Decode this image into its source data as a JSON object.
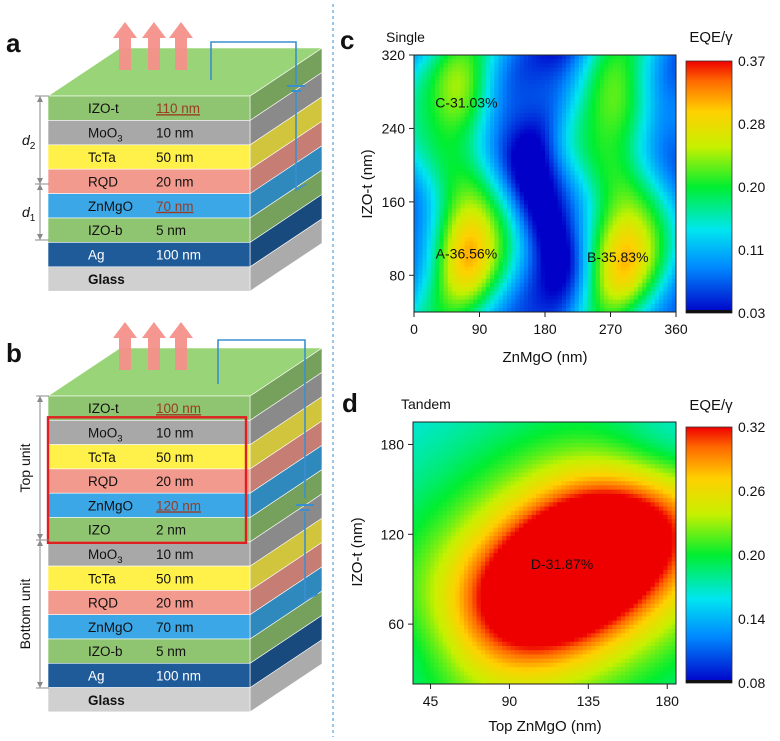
{
  "panel_a": {
    "label": "a",
    "layers": [
      {
        "name": "IZO-t",
        "thickness": "110 nm",
        "highlight": true,
        "color": "#8fc470"
      },
      {
        "name": "MoO",
        "sub": "3",
        "thickness": "10 nm",
        "highlight": false,
        "color": "#a8a8a8"
      },
      {
        "name": "TcTa",
        "thickness": "50 nm",
        "highlight": false,
        "color": "#fff04a"
      },
      {
        "name": "RQD",
        "thickness": "20 nm",
        "highlight": false,
        "color": "#f29a8e"
      },
      {
        "name": "ZnMgO",
        "thickness": "70 nm",
        "highlight": true,
        "color": "#3ba7e6"
      },
      {
        "name": "IZO-b",
        "thickness": "5 nm",
        "highlight": false,
        "color": "#8fc470"
      },
      {
        "name": "Ag",
        "thickness": "100 nm",
        "highlight": false,
        "color": "#1f5a99"
      },
      {
        "name": "Glass",
        "thickness": "",
        "highlight": false,
        "color": "#d0d0d0"
      }
    ],
    "dim_d2": "d",
    "dim_d2_sub": "2",
    "dim_d1": "d",
    "dim_d1_sub": "1"
  },
  "panel_b": {
    "label": "b",
    "layers": [
      {
        "name": "IZO-t",
        "thickness": "100 nm",
        "highlight": true,
        "color": "#8fc470"
      },
      {
        "name": "MoO",
        "sub": "3",
        "thickness": "10 nm",
        "highlight": false,
        "color": "#a8a8a8"
      },
      {
        "name": "TcTa",
        "thickness": "50 nm",
        "highlight": false,
        "color": "#fff04a"
      },
      {
        "name": "RQD",
        "thickness": "20 nm",
        "highlight": false,
        "color": "#f29a8e"
      },
      {
        "name": "ZnMgO",
        "thickness": "120 nm",
        "highlight": true,
        "color": "#3ba7e6"
      },
      {
        "name": "IZO",
        "thickness": "2 nm",
        "highlight": false,
        "color": "#8fc470"
      },
      {
        "name": "MoO",
        "sub": "3",
        "thickness": "10 nm",
        "highlight": false,
        "color": "#a8a8a8"
      },
      {
        "name": "TcTa",
        "thickness": "50 nm",
        "highlight": false,
        "color": "#fff04a"
      },
      {
        "name": "RQD",
        "thickness": "20 nm",
        "highlight": false,
        "color": "#f29a8e"
      },
      {
        "name": "ZnMgO",
        "thickness": "70 nm",
        "highlight": false,
        "color": "#3ba7e6"
      },
      {
        "name": "IZO-b",
        "thickness": "5 nm",
        "highlight": false,
        "color": "#8fc470"
      },
      {
        "name": "Ag",
        "thickness": "100 nm",
        "highlight": false,
        "color": "#1f5a99"
      },
      {
        "name": "Glass",
        "thickness": "",
        "highlight": false,
        "color": "#d0d0d0"
      }
    ],
    "top_unit": "Top unit",
    "bottom_unit": "Bottom unit"
  },
  "chart_data": [
    {
      "type": "heatmap",
      "panel": "c",
      "title": "Single",
      "xlabel": "ZnMgO (nm)",
      "ylabel": "IZO-t (nm)",
      "xlim": [
        0,
        360
      ],
      "ylim": [
        40,
        320
      ],
      "xticks": [
        "0",
        "90",
        "180",
        "270",
        "360"
      ],
      "xtick_values": [
        0,
        90,
        180,
        270,
        360
      ],
      "yticks": [
        "80",
        "160",
        "240",
        "320"
      ],
      "ytick_values": [
        80,
        160,
        240,
        320
      ],
      "colorbar_title": "EQE/γ",
      "colorbar_ticks": [
        "0.37",
        "0.28",
        "0.20",
        "0.11",
        "0.03"
      ],
      "colorbar_range": [
        0.03,
        0.37
      ],
      "annotations": [
        {
          "text": "C-31.03%",
          "x": 72,
          "y": 268
        },
        {
          "text": "A-36.56%",
          "x": 72,
          "y": 104
        },
        {
          "text": "B-35.83%",
          "x": 280,
          "y": 100
        }
      ]
    },
    {
      "type": "heatmap",
      "panel": "d",
      "title": "Tandem",
      "xlabel": "Top ZnMgO (nm)",
      "ylabel": "IZO-t (nm)",
      "xlim": [
        35,
        185
      ],
      "ylim": [
        20,
        195
      ],
      "xticks": [
        "45",
        "90",
        "135",
        "180"
      ],
      "xtick_values": [
        45,
        90,
        135,
        180
      ],
      "yticks": [
        "60",
        "120",
        "180"
      ],
      "ytick_values": [
        60,
        120,
        180
      ],
      "colorbar_title": "EQE/γ",
      "colorbar_ticks": [
        "0.32",
        "0.26",
        "0.20",
        "0.14",
        "0.08"
      ],
      "colorbar_range": [
        0.08,
        0.32
      ],
      "annotations": [
        {
          "text": "D-31.87%",
          "x": 120,
          "y": 100
        }
      ]
    }
  ]
}
